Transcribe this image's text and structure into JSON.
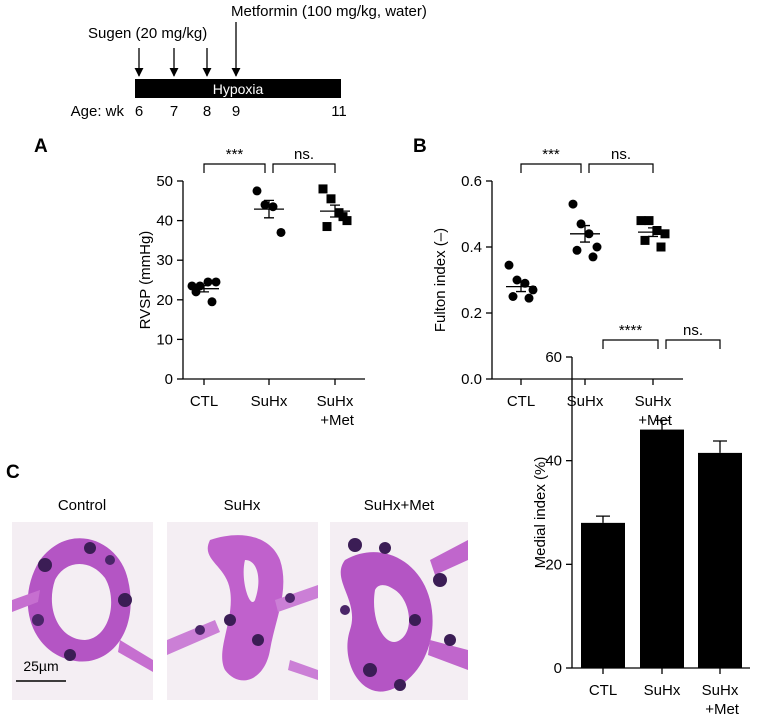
{
  "figure": {
    "timeline": {
      "sugen_label": "Sugen (20 mg/kg)",
      "metformin_label": "Metformin (100 mg/kg, water)",
      "phase_label": "Hypoxia",
      "age_label": "Age: wk",
      "weeks": [
        6,
        7,
        8,
        9,
        11
      ]
    },
    "images": {
      "labels": [
        "Control",
        "SuHx",
        "SuHx+Met"
      ],
      "scale_bar": "25µm"
    }
  },
  "chart_data": [
    {
      "type": "dot",
      "panel": "A",
      "ylabel": "RVSP (mmHg)",
      "categories": [
        "CTL",
        "SuHx",
        "SuHx +Met"
      ],
      "points": [
        [
          23.5,
          23.5,
          24.5,
          24.5,
          22,
          19.5
        ],
        [
          47.5,
          44,
          43.5,
          37
        ],
        [
          48,
          45.5,
          42,
          40,
          38.5,
          41
        ]
      ],
      "markers": [
        "circle",
        "circle",
        "square"
      ],
      "means": [
        22.8,
        42.9,
        42.4
      ],
      "errors": [
        0.8,
        2.2,
        1.5
      ],
      "annotations": [
        "***",
        "ns."
      ],
      "color": "#000000",
      "ylim": [
        0,
        50
      ],
      "yticks": [
        0,
        10,
        20,
        30,
        40,
        50
      ]
    },
    {
      "type": "dot",
      "panel": "B",
      "ylabel": "Fulton index (–)",
      "categories": [
        "CTL",
        "SuHx",
        "SuHx +Met"
      ],
      "points": [
        [
          0.345,
          0.3,
          0.29,
          0.27,
          0.25,
          0.245
        ],
        [
          0.53,
          0.47,
          0.44,
          0.4,
          0.39,
          0.37
        ],
        [
          0.48,
          0.48,
          0.45,
          0.44,
          0.42,
          0.4
        ]
      ],
      "markers": [
        "circle",
        "circle",
        "square"
      ],
      "means": [
        0.28,
        0.44,
        0.445
      ],
      "errors": [
        0.015,
        0.025,
        0.013
      ],
      "annotations": [
        "***",
        "ns."
      ],
      "color": "#000000",
      "ylim": [
        0,
        0.6
      ],
      "yticks": [
        {
          "value": 0,
          "label": "0.0"
        },
        0.2,
        0.4,
        0.6
      ]
    },
    {
      "type": "bar",
      "panel": "C",
      "ylabel": "Medial index (%)",
      "categories": [
        "CTL",
        "SuHx",
        "SuHx +Met"
      ],
      "values": [
        28,
        46,
        41.5
      ],
      "errors": [
        1.3,
        1.8,
        2.3
      ],
      "annotations": [
        "****",
        "ns."
      ],
      "color": "#000000",
      "ylim": [
        0,
        60
      ],
      "yticks": [
        0,
        20,
        40,
        60
      ]
    }
  ]
}
